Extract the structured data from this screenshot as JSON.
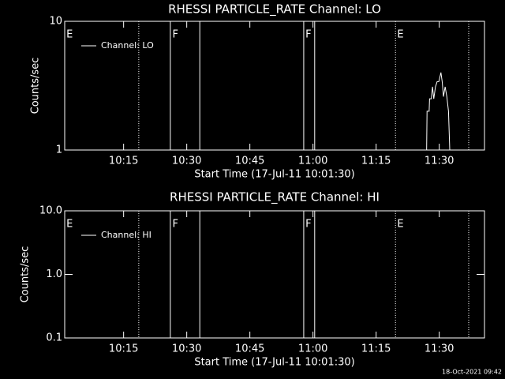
{
  "chart_data": [
    {
      "type": "line",
      "title": "RHESSI PARTICLE_RATE Channel: LO",
      "xlabel": "Start Time (17-Jul-11 10:01:30)",
      "ylabel": "Counts/sec",
      "log_y": true,
      "ylim": [
        1,
        10
      ],
      "yticks": [
        1,
        10
      ],
      "xlim": [
        1,
        100.75
      ],
      "xticks": [
        {
          "value": 15,
          "label": "10:15"
        },
        {
          "value": 30,
          "label": "10:30"
        },
        {
          "value": 45,
          "label": "10:45"
        },
        {
          "value": 60,
          "label": "11:00"
        },
        {
          "value": 75,
          "label": "11:15"
        },
        {
          "value": 90,
          "label": "11:30"
        }
      ],
      "legend": "upper left",
      "series": [
        {
          "name": "Channel: LO",
          "color": "#ffffff",
          "x": [
            87.0,
            87.1,
            87.6,
            87.7,
            88.1,
            88.4,
            88.7,
            89.1,
            89.5,
            89.9,
            90.4,
            90.7,
            91.0,
            91.4,
            91.8,
            92.2,
            92.5
          ],
          "values": [
            1,
            2.0,
            2.0,
            2.5,
            2.5,
            3.1,
            2.5,
            3.1,
            3.4,
            3.4,
            4.0,
            3.4,
            2.6,
            3.1,
            2.6,
            2.0,
            1
          ]
        }
      ],
      "events": [
        {
          "x": 18.6,
          "style": "dotted"
        },
        {
          "x": 26.1,
          "style": "solid"
        },
        {
          "x": 33.1,
          "style": "solid"
        },
        {
          "x": 57.8,
          "style": "solid"
        },
        {
          "x": 60.4,
          "style": "solid"
        },
        {
          "x": 79.6,
          "style": "dotted"
        },
        {
          "x": 97.0,
          "style": "dotted"
        }
      ],
      "event_labels": [
        {
          "x": 1.4,
          "text": "E"
        },
        {
          "x": 26.6,
          "text": "F"
        },
        {
          "x": 58.2,
          "text": "F"
        },
        {
          "x": 80.0,
          "text": "E"
        }
      ]
    },
    {
      "type": "line",
      "title": "RHESSI PARTICLE_RATE Channel: HI",
      "xlabel": "Start Time (17-Jul-11 10:01:30)",
      "ylabel": "Counts/sec",
      "log_y": true,
      "ylim": [
        0.1,
        10
      ],
      "yticks": [
        0.1,
        {
          "value": 1,
          "label": "1.0"
        },
        {
          "value": 10,
          "label": "10.0"
        }
      ],
      "xlim": [
        1,
        100.75
      ],
      "xticks": [
        {
          "value": 15,
          "label": "10:15"
        },
        {
          "value": 30,
          "label": "10:30"
        },
        {
          "value": 45,
          "label": "10:45"
        },
        {
          "value": 60,
          "label": "11:00"
        },
        {
          "value": 75,
          "label": "11:15"
        },
        {
          "value": 90,
          "label": "11:30"
        }
      ],
      "legend": "upper left",
      "series": [
        {
          "name": "Channel: HI",
          "color": "#ffffff",
          "x": [],
          "values": []
        }
      ],
      "events": [
        {
          "x": 18.6,
          "style": "dotted"
        },
        {
          "x": 26.1,
          "style": "solid"
        },
        {
          "x": 33.1,
          "style": "solid"
        },
        {
          "x": 57.8,
          "style": "solid"
        },
        {
          "x": 60.4,
          "style": "solid"
        },
        {
          "x": 79.6,
          "style": "dotted"
        },
        {
          "x": 97.0,
          "style": "dotted"
        }
      ],
      "event_labels": [
        {
          "x": 1.4,
          "text": "E"
        },
        {
          "x": 26.6,
          "text": "F"
        },
        {
          "x": 58.2,
          "text": "F"
        },
        {
          "x": 80.0,
          "text": "E"
        }
      ]
    }
  ],
  "footer": "18-Oct-2021 09:42"
}
